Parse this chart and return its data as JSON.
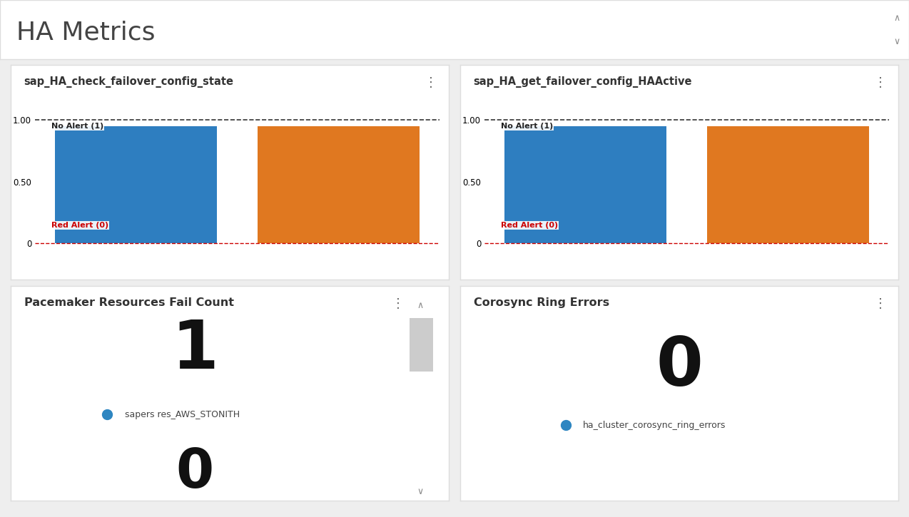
{
  "title": "HA Metrics",
  "title_fontsize": 26,
  "title_color": "#444444",
  "background_color": "#eeeeee",
  "panel_bg": "#ffffff",
  "panel_border": "#dddddd",
  "top_left_panel": {
    "title": "sap_HA_check_failover_config_state",
    "bar1_color": "#2e7ec0",
    "bar2_color": "#e07820",
    "dashed_line_y": 1.0,
    "red_line_y": 0.0,
    "label_no_alert": "No Alert (1)",
    "label_red_alert": "Red Alert (0)",
    "label_no_alert_color": "#222222",
    "label_red_alert_color": "#cc0000"
  },
  "top_right_panel": {
    "title": "sap_HA_get_failover_config_HAActive",
    "bar1_color": "#2e7ec0",
    "bar2_color": "#e07820",
    "dashed_line_y": 1.0,
    "red_line_y": 0.0,
    "label_no_alert": "No Alert (1)",
    "label_red_alert": "Red Alert (0)",
    "label_no_alert_color": "#222222",
    "label_red_alert_color": "#cc0000"
  },
  "bottom_left_panel": {
    "title": "Pacemaker Resources Fail Count",
    "value1": "1",
    "value2": "0",
    "legend_color": "#2e86c1",
    "legend_label": "sapers res_AWS_STONITH",
    "has_scrollbar": true,
    "scrollbar_color": "#cccccc",
    "arrow_color": "#888888"
  },
  "bottom_right_panel": {
    "title": "Corosync Ring Errors",
    "value": "0",
    "legend_color": "#2e86c1",
    "legend_label": "ha_cluster_corosync_ring_errors"
  }
}
